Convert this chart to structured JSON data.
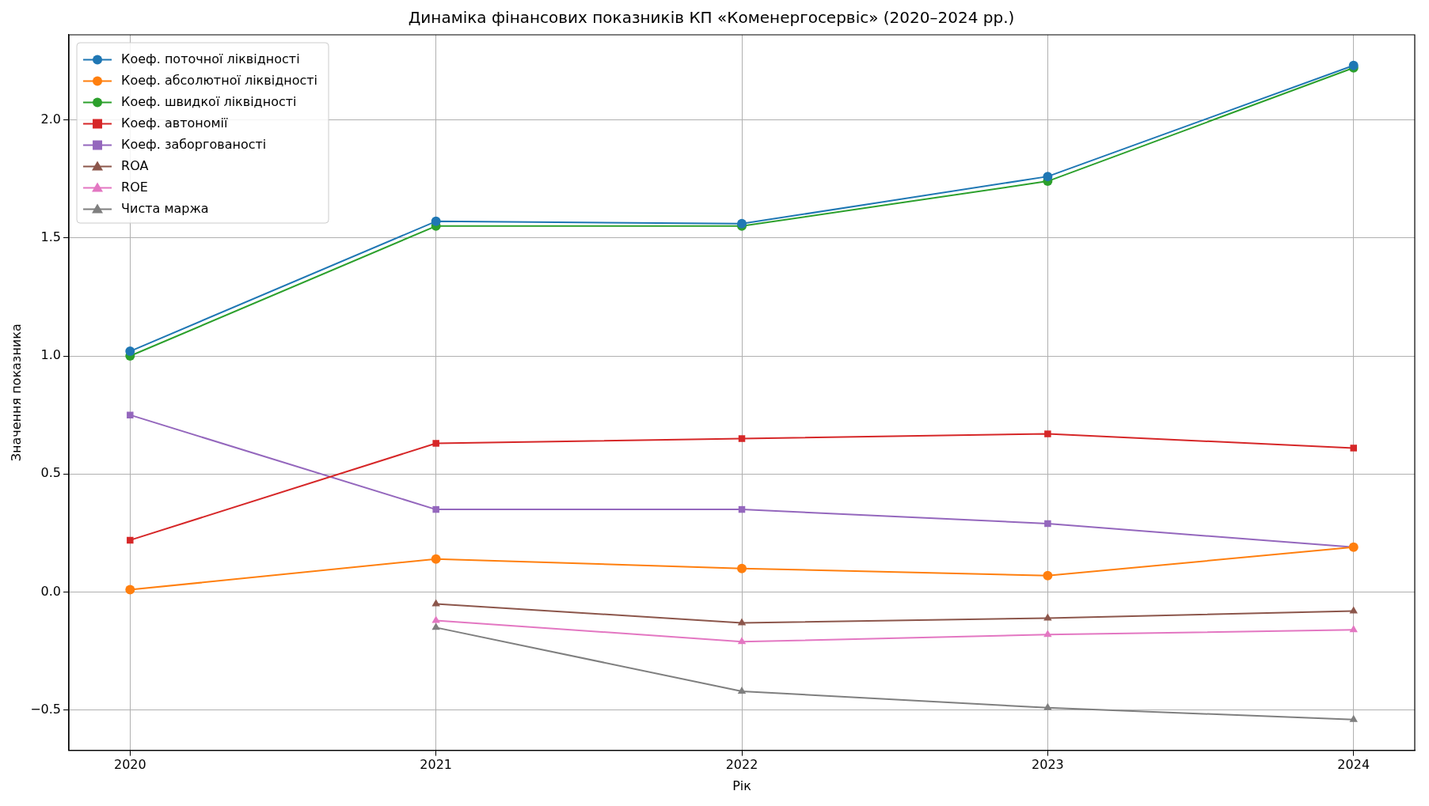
{
  "chart_data": {
    "type": "line",
    "title": "Динаміка фінансових показників КП «Коменергосервіс» (2020–2024 рр.)",
    "xlabel": "Рік",
    "ylabel": "Значення показника",
    "x": [
      2020,
      2021,
      2022,
      2023,
      2024
    ],
    "xlim": [
      2019.8,
      2024.2
    ],
    "xticks": [
      2020,
      2021,
      2022,
      2023,
      2024
    ],
    "ylim": [
      -0.67,
      2.36
    ],
    "yticks": [
      {
        "value": -0.5,
        "label": "−0.5"
      },
      {
        "value": 0,
        "label": "0.0"
      },
      {
        "value": 0.5,
        "label": "0.5"
      },
      {
        "value": 1,
        "label": "1.0"
      },
      {
        "value": 1.5,
        "label": "1.5"
      },
      {
        "value": 2,
        "label": "2.0"
      }
    ],
    "grid": true,
    "legend": "top left",
    "line_style": "solid",
    "series": [
      {
        "name": "Коеф. поточної ліквідності",
        "color": "#1f77b4",
        "marker": "circle",
        "values": [
          1.02,
          1.57,
          1.56,
          1.76,
          2.23
        ]
      },
      {
        "name": "Коеф. абсолютної ліквідності",
        "color": "#ff7f0e",
        "marker": "circle",
        "values": [
          0.01,
          0.14,
          0.1,
          0.07,
          0.19
        ]
      },
      {
        "name": "Коеф. швидкої ліквідності",
        "color": "#2ca02c",
        "marker": "circle",
        "values": [
          1.0,
          1.55,
          1.55,
          1.74,
          2.22
        ]
      },
      {
        "name": "Коеф. автономії",
        "color": "#d62728",
        "marker": "square",
        "values": [
          0.22,
          0.63,
          0.65,
          0.67,
          0.61
        ]
      },
      {
        "name": "Коеф. заборгованості",
        "color": "#9467bd",
        "marker": "square",
        "values": [
          0.75,
          0.35,
          0.35,
          0.29,
          0.19
        ]
      },
      {
        "name": "ROA",
        "color": "#8c564b",
        "marker": "triangle",
        "values": [
          null,
          -0.05,
          -0.13,
          -0.11,
          -0.08
        ]
      },
      {
        "name": "ROE",
        "color": "#e377c2",
        "marker": "triangle",
        "values": [
          null,
          -0.12,
          -0.21,
          -0.18,
          -0.16
        ]
      },
      {
        "name": "Чиста маржа",
        "color": "#7f7f7f",
        "marker": "triangle",
        "values": [
          null,
          -0.15,
          -0.42,
          -0.49,
          -0.54
        ]
      }
    ]
  }
}
